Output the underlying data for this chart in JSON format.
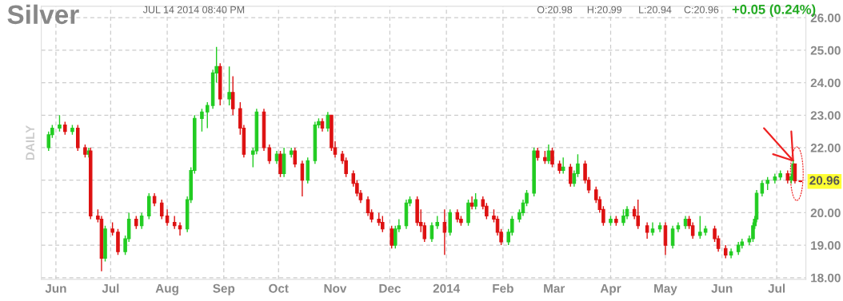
{
  "chart_data": {
    "type": "candlestick",
    "title": "Silver",
    "ylabel": "DAILY",
    "annotations": [
      "JUL 14 2014 08:40 PM",
      "O:20.98",
      "H:20.99",
      "L:20.94",
      "C:20.96",
      "+0.05 (0.24%)",
      {
        "text": "20.96",
        "x": "2014-07-14",
        "y": 20.96
      }
    ],
    "colors": [
      "#22cc22",
      "#22cc22",
      "#22cc22",
      "#dd1111",
      "#22cc22",
      "#dd1111",
      "#dd1111",
      "#22cc22",
      "#dd1111",
      "#dd1111",
      "#dd1111",
      "#22cc22",
      "#dd1111",
      "#dd1111",
      "#22cc22",
      "#22cc22",
      "#dd1111",
      "#22cc22",
      "#22cc22",
      "#dd1111",
      "#dd1111",
      "#dd1111",
      "#dd1111",
      "#dd1111",
      "#22cc22",
      "#22cc22",
      "#22cc22",
      "#22cc22",
      "#22cc22",
      "#22cc22",
      "#22cc22",
      "#dd1111",
      "#22cc22",
      "#dd1111",
      "#dd1111",
      "#dd1111",
      "#22cc22",
      "#22cc22",
      "#dd1111",
      "#dd1111",
      "#22cc22",
      "#dd1111",
      "#22cc22",
      "#22cc22",
      "#dd1111",
      "#dd1111",
      "#22cc22",
      "#22cc22",
      "#22cc22",
      "#dd1111",
      "#22cc22",
      "#dd1111",
      "#dd1111",
      "#dd1111",
      "#dd1111",
      "#dd1111",
      "#dd1111",
      "#dd1111",
      "#dd1111",
      "#dd1111",
      "#dd1111",
      "#dd1111",
      "#dd1111",
      "#22cc22",
      "#22cc22",
      "#22cc22",
      "#22cc22",
      "#dd1111",
      "#dd1111",
      "#dd1111",
      "#22cc22",
      "#22cc22",
      "#dd1111",
      "#22cc22",
      "#dd1111",
      "#dd1111",
      "#22cc22",
      "#dd1111",
      "#22cc22",
      "#dd1111",
      "#dd1111",
      "#dd1111",
      "#dd1111",
      "#dd1111",
      "#22cc22",
      "#22cc22",
      "#22cc22",
      "#22cc22",
      "#22cc22",
      "#22cc22",
      "#dd1111",
      "#dd1111",
      "#22cc22",
      "#dd1111",
      "#dd1111",
      "#22cc22",
      "#dd1111",
      "#22cc22",
      "#22cc22",
      "#dd1111",
      "#dd1111",
      "#dd1111",
      "#dd1111",
      "#dd1111",
      "#22cc22",
      "#dd1111",
      "#22cc22",
      "#22cc22",
      "#dd1111",
      "#dd1111",
      "#dd1111",
      "#22cc22",
      "#22cc22",
      "#dd1111",
      "#22cc22",
      "#22cc22",
      "#22cc22",
      "#dd1111",
      "#dd1111",
      "#22cc22",
      "#22cc22",
      "#dd1111",
      "#dd1111",
      "#dd1111",
      "#22cc22",
      "#22cc22",
      "#22cc22",
      "#22cc22",
      "#22cc22",
      "#22cc22",
      "#22cc22",
      "#22cc22",
      "#22cc22",
      "#22cc22",
      "#22cc22",
      "#dd1111",
      "#22cc22",
      "#22cc22",
      "#dd1111",
      "#dd1111"
    ],
    "grid": true,
    "xlim": [
      "2013-05-24",
      "2014-07-17"
    ],
    "xticks": [
      {
        "value": "2013-06-01",
        "label": "Jun"
      },
      {
        "value": "2013-07-01",
        "label": "Jul"
      },
      {
        "value": "2013-08-01",
        "label": "Aug"
      },
      {
        "value": "2013-09-01",
        "label": "Sep"
      },
      {
        "value": "2013-10-01",
        "label": "Oct"
      },
      {
        "value": "2013-11-01",
        "label": "Nov"
      },
      {
        "value": "2013-12-01",
        "label": "Dec"
      },
      {
        "value": "2014-01-01",
        "label": "2014"
      },
      {
        "value": "2014-02-01",
        "label": "Feb"
      },
      {
        "value": "2014-03-01",
        "label": "Mar"
      },
      {
        "value": "2014-04-01",
        "label": "Apr"
      },
      {
        "value": "2014-05-01",
        "label": "May"
      },
      {
        "value": "2014-06-01",
        "label": "Jun"
      },
      {
        "value": "2014-07-01",
        "label": "Jul"
      }
    ],
    "ylim": [
      17.95,
      26.35
    ],
    "yticks": [
      {
        "value": 18,
        "label": "18.00"
      },
      {
        "value": 19,
        "label": "19.00"
      },
      {
        "value": 20,
        "label": "20.00"
      },
      {
        "value": 21,
        "label": null
      },
      {
        "value": 22,
        "label": "22.00"
      },
      {
        "value": 23,
        "label": "23.00"
      },
      {
        "value": 24,
        "label": "24.00"
      },
      {
        "value": 25,
        "label": "25.00"
      },
      {
        "value": 26,
        "label": "26.00"
      }
    ],
    "x": [
      "2013-05-28",
      "2013-05-30",
      "2013-06-03",
      "2013-06-06",
      "2013-06-10",
      "2013-06-13",
      "2013-06-17",
      "2013-06-19",
      "2013-06-20",
      "2013-06-24",
      "2013-06-26",
      "2013-06-28",
      "2013-07-02",
      "2013-07-05",
      "2013-07-09",
      "2013-07-11",
      "2013-07-15",
      "2013-07-18",
      "2013-07-22",
      "2013-07-25",
      "2013-07-29",
      "2013-08-01",
      "2013-08-05",
      "2013-08-08",
      "2013-08-12",
      "2013-08-14",
      "2013-08-16",
      "2013-08-20",
      "2013-08-23",
      "2013-08-26",
      "2013-08-28",
      "2013-08-30",
      "2013-09-04",
      "2013-09-06",
      "2013-09-10",
      "2013-09-12",
      "2013-09-17",
      "2013-09-19",
      "2013-09-23",
      "2013-09-26",
      "2013-09-30",
      "2013-10-02",
      "2013-10-04",
      "2013-10-08",
      "2013-10-10",
      "2013-10-14",
      "2013-10-17",
      "2013-10-21",
      "2013-10-23",
      "2013-10-25",
      "2013-10-28",
      "2013-10-30",
      "2013-11-01",
      "2013-11-05",
      "2013-11-07",
      "2013-11-11",
      "2013-11-13",
      "2013-11-15",
      "2013-11-19",
      "2013-11-21",
      "2013-11-25",
      "2013-11-27",
      "2013-12-02",
      "2013-12-04",
      "2013-12-06",
      "2013-12-10",
      "2013-12-12",
      "2013-12-16",
      "2013-12-18",
      "2013-12-20",
      "2013-12-24",
      "2013-12-27",
      "2013-12-31",
      "2014-01-03",
      "2014-01-07",
      "2014-01-09",
      "2014-01-13",
      "2014-01-15",
      "2014-01-17",
      "2014-01-21",
      "2014-01-23",
      "2014-01-27",
      "2014-01-29",
      "2014-01-31",
      "2014-02-04",
      "2014-02-06",
      "2014-02-10",
      "2014-02-12",
      "2014-02-14",
      "2014-02-18",
      "2014-02-20",
      "2014-02-24",
      "2014-02-26",
      "2014-02-28",
      "2014-03-04",
      "2014-03-06",
      "2014-03-10",
      "2014-03-12",
      "2014-03-14",
      "2014-03-18",
      "2014-03-20",
      "2014-03-24",
      "2014-03-26",
      "2014-03-28",
      "2014-04-01",
      "2014-04-04",
      "2014-04-08",
      "2014-04-10",
      "2014-04-14",
      "2014-04-16",
      "2014-04-21",
      "2014-04-24",
      "2014-04-28",
      "2014-05-01",
      "2014-05-05",
      "2014-05-08",
      "2014-05-12",
      "2014-05-14",
      "2014-05-16",
      "2014-05-20",
      "2014-05-23",
      "2014-05-28",
      "2014-05-30",
      "2014-06-03",
      "2014-06-06",
      "2014-06-10",
      "2014-06-12",
      "2014-06-16",
      "2014-06-18",
      "2014-06-19",
      "2014-06-20",
      "2014-06-23",
      "2014-06-26",
      "2014-06-30",
      "2014-07-03",
      "2014-07-07",
      "2014-07-09",
      "2014-07-10",
      "2014-07-11",
      "2014-07-14"
    ],
    "ohlc": [
      [
        22.0,
        22.5,
        21.9,
        22.4
      ],
      [
        22.4,
        22.7,
        22.3,
        22.6
      ],
      [
        22.6,
        23.0,
        22.5,
        22.7
      ],
      [
        22.7,
        22.8,
        22.4,
        22.5
      ],
      [
        22.5,
        22.7,
        22.4,
        22.6
      ],
      [
        22.6,
        22.7,
        21.9,
        22.0
      ],
      [
        22.0,
        22.1,
        21.7,
        21.8
      ],
      [
        21.8,
        22.0,
        21.7,
        21.9
      ],
      [
        21.9,
        22.0,
        19.8,
        19.9
      ],
      [
        19.9,
        20.1,
        19.7,
        19.8
      ],
      [
        19.8,
        19.9,
        18.2,
        18.6
      ],
      [
        18.6,
        19.6,
        18.5,
        19.5
      ],
      [
        19.5,
        19.7,
        19.3,
        19.4
      ],
      [
        19.4,
        19.5,
        18.7,
        18.8
      ],
      [
        18.8,
        19.3,
        18.7,
        19.2
      ],
      [
        19.2,
        20.0,
        19.1,
        19.8
      ],
      [
        19.8,
        19.9,
        19.5,
        19.6
      ],
      [
        19.6,
        20.0,
        19.5,
        19.9
      ],
      [
        19.9,
        20.6,
        19.8,
        20.5
      ],
      [
        20.5,
        20.6,
        20.2,
        20.3
      ],
      [
        20.3,
        20.4,
        19.8,
        19.9
      ],
      [
        19.9,
        20.1,
        19.6,
        19.7
      ],
      [
        19.7,
        19.9,
        19.5,
        19.6
      ],
      [
        19.6,
        19.7,
        19.3,
        19.5
      ],
      [
        19.5,
        20.5,
        19.4,
        20.4
      ],
      [
        20.4,
        21.4,
        20.3,
        21.3
      ],
      [
        21.3,
        23.0,
        21.2,
        22.9
      ],
      [
        22.9,
        23.2,
        22.5,
        23.1
      ],
      [
        23.1,
        23.4,
        22.6,
        23.3
      ],
      [
        23.3,
        24.4,
        23.2,
        24.3
      ],
      [
        24.3,
        25.1,
        24.0,
        24.5
      ],
      [
        24.5,
        24.6,
        23.3,
        23.5
      ],
      [
        23.5,
        24.5,
        23.3,
        23.7
      ],
      [
        23.7,
        24.2,
        23.0,
        23.2
      ],
      [
        23.2,
        23.4,
        22.4,
        22.6
      ],
      [
        22.6,
        22.7,
        21.7,
        21.8
      ],
      [
        21.8,
        22.0,
        21.4,
        21.9
      ],
      [
        21.9,
        23.2,
        21.8,
        23.1
      ],
      [
        23.1,
        23.2,
        21.9,
        22.0
      ],
      [
        22.0,
        22.1,
        21.5,
        21.6
      ],
      [
        21.6,
        21.9,
        21.5,
        21.8
      ],
      [
        21.8,
        21.9,
        21.1,
        21.2
      ],
      [
        21.2,
        22.0,
        21.1,
        21.8
      ],
      [
        21.8,
        22.0,
        21.7,
        21.9
      ],
      [
        21.9,
        22.0,
        21.4,
        21.5
      ],
      [
        21.5,
        21.6,
        20.5,
        21.0
      ],
      [
        21.0,
        21.7,
        20.9,
        21.6
      ],
      [
        21.6,
        22.8,
        21.5,
        22.7
      ],
      [
        22.7,
        22.9,
        22.6,
        22.8
      ],
      [
        22.8,
        22.9,
        22.5,
        22.6
      ],
      [
        22.6,
        23.1,
        22.5,
        23.0
      ],
      [
        23.0,
        23.0,
        21.9,
        22.0
      ],
      [
        22.0,
        22.2,
        21.7,
        21.8
      ],
      [
        21.8,
        21.9,
        21.5,
        21.6
      ],
      [
        21.6,
        21.7,
        21.1,
        21.2
      ],
      [
        21.2,
        21.3,
        20.8,
        20.9
      ],
      [
        20.9,
        21.0,
        20.5,
        20.6
      ],
      [
        20.6,
        20.7,
        20.3,
        20.4
      ],
      [
        20.4,
        20.5,
        19.9,
        20.0
      ],
      [
        20.0,
        20.1,
        19.7,
        19.8
      ],
      [
        19.8,
        20.0,
        19.6,
        19.7
      ],
      [
        19.7,
        19.9,
        19.4,
        19.5
      ],
      [
        19.5,
        19.6,
        18.9,
        19.0
      ],
      [
        19.0,
        19.6,
        18.9,
        19.5
      ],
      [
        19.5,
        19.8,
        19.4,
        19.6
      ],
      [
        19.6,
        20.4,
        19.5,
        20.3
      ],
      [
        20.3,
        20.5,
        20.2,
        20.4
      ],
      [
        20.4,
        20.5,
        19.6,
        19.7
      ],
      [
        19.7,
        20.1,
        19.4,
        19.6
      ],
      [
        19.6,
        19.7,
        19.1,
        19.2
      ],
      [
        19.2,
        19.7,
        19.1,
        19.6
      ],
      [
        19.6,
        19.9,
        19.5,
        19.7
      ],
      [
        19.7,
        20.1,
        18.7,
        19.4
      ],
      [
        19.4,
        20.1,
        19.3,
        20.0
      ],
      [
        20.0,
        20.1,
        19.7,
        19.8
      ],
      [
        19.8,
        19.9,
        19.6,
        19.7
      ],
      [
        19.7,
        20.4,
        19.6,
        20.3
      ],
      [
        20.3,
        20.5,
        20.1,
        20.2
      ],
      [
        20.2,
        20.6,
        20.1,
        20.4
      ],
      [
        20.4,
        20.5,
        20.1,
        20.2
      ],
      [
        20.2,
        20.3,
        19.8,
        19.9
      ],
      [
        19.9,
        20.1,
        19.7,
        19.8
      ],
      [
        19.8,
        19.9,
        19.3,
        19.4
      ],
      [
        19.4,
        19.5,
        19.0,
        19.1
      ],
      [
        19.1,
        19.5,
        19.0,
        19.4
      ],
      [
        19.4,
        19.9,
        19.3,
        19.8
      ],
      [
        19.8,
        20.1,
        19.7,
        20.0
      ],
      [
        20.0,
        20.4,
        19.9,
        20.3
      ],
      [
        20.3,
        20.7,
        20.2,
        20.6
      ],
      [
        20.6,
        22.0,
        20.5,
        21.9
      ],
      [
        21.9,
        22.0,
        21.6,
        21.7
      ],
      [
        21.7,
        21.9,
        21.5,
        21.6
      ],
      [
        21.6,
        22.1,
        21.5,
        21.9
      ],
      [
        21.9,
        22.0,
        21.4,
        21.5
      ],
      [
        21.5,
        21.6,
        21.2,
        21.3
      ],
      [
        21.3,
        21.7,
        21.2,
        21.4
      ],
      [
        21.4,
        21.5,
        20.8,
        20.9
      ],
      [
        20.9,
        21.3,
        20.8,
        21.2
      ],
      [
        21.2,
        21.8,
        21.1,
        21.5
      ],
      [
        21.5,
        21.6,
        20.9,
        21.0
      ],
      [
        21.0,
        21.1,
        20.6,
        20.7
      ],
      [
        20.7,
        20.8,
        20.3,
        20.4
      ],
      [
        20.4,
        20.5,
        20.0,
        20.1
      ],
      [
        20.1,
        20.2,
        19.6,
        19.7
      ],
      [
        19.7,
        19.9,
        19.6,
        19.8
      ],
      [
        19.8,
        19.9,
        19.6,
        19.7
      ],
      [
        19.7,
        20.1,
        19.6,
        19.9
      ],
      [
        19.9,
        20.2,
        19.8,
        20.1
      ],
      [
        20.1,
        20.2,
        19.8,
        19.9
      ],
      [
        19.9,
        20.4,
        19.5,
        19.6
      ],
      [
        19.6,
        19.7,
        19.2,
        19.4
      ],
      [
        19.4,
        19.7,
        19.3,
        19.5
      ],
      [
        19.5,
        19.7,
        19.4,
        19.6
      ],
      [
        19.6,
        19.7,
        18.7,
        19.0
      ],
      [
        19.0,
        19.6,
        18.9,
        19.5
      ],
      [
        19.5,
        19.7,
        19.4,
        19.6
      ],
      [
        19.6,
        19.9,
        19.5,
        19.8
      ],
      [
        19.8,
        19.9,
        19.5,
        19.6
      ],
      [
        19.6,
        19.7,
        19.2,
        19.3
      ],
      [
        19.3,
        19.9,
        19.2,
        19.4
      ],
      [
        19.4,
        19.6,
        19.3,
        19.5
      ],
      [
        19.5,
        19.6,
        19.1,
        19.2
      ],
      [
        19.2,
        19.3,
        18.8,
        18.9
      ],
      [
        18.9,
        19.0,
        18.6,
        18.7
      ],
      [
        18.7,
        18.9,
        18.6,
        18.8
      ],
      [
        18.8,
        19.1,
        18.7,
        19.0
      ],
      [
        19.0,
        19.2,
        18.9,
        19.1
      ],
      [
        19.1,
        19.3,
        19.0,
        19.2
      ],
      [
        19.2,
        19.7,
        19.1,
        19.6
      ],
      [
        19.6,
        19.9,
        19.5,
        19.8
      ],
      [
        19.8,
        20.7,
        19.7,
        20.6
      ],
      [
        20.6,
        21.0,
        20.5,
        20.9
      ],
      [
        20.9,
        21.1,
        20.7,
        21.0
      ],
      [
        21.0,
        21.2,
        20.9,
        21.1
      ],
      [
        21.1,
        21.3,
        21.0,
        21.2
      ],
      [
        21.2,
        21.3,
        20.9,
        21.0
      ],
      [
        21.0,
        21.2,
        20.9,
        21.1
      ],
      [
        21.1,
        21.6,
        21.0,
        21.5
      ],
      [
        21.5,
        21.5,
        20.9,
        20.98
      ],
      [
        20.98,
        20.99,
        20.94,
        20.96
      ]
    ]
  }
}
